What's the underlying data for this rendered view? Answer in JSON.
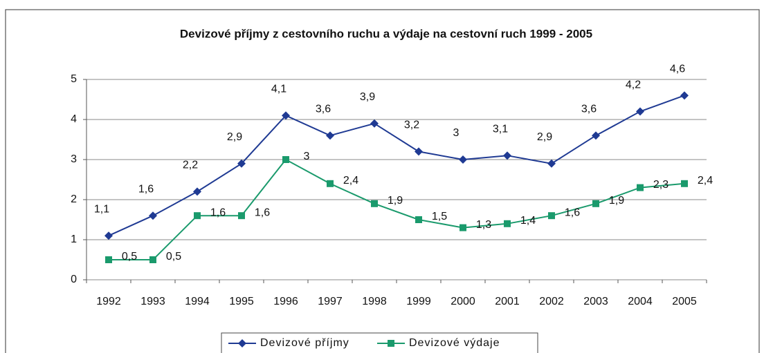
{
  "chart_data": {
    "type": "line",
    "title": "Devizové příjmy z cestovního ruchu a výdaje na cestovní ruch 1999 - 2005",
    "categories": [
      "1992",
      "1993",
      "1994",
      "1995",
      "1996",
      "1997",
      "1998",
      "1999",
      "2000",
      "2001",
      "2002",
      "2003",
      "2004",
      "2005"
    ],
    "series": [
      {
        "name": "Devizové příjmy",
        "color": "#1f3a93",
        "values": [
          1.1,
          1.6,
          2.2,
          2.9,
          4.1,
          3.6,
          3.9,
          3.2,
          3,
          3.1,
          2.9,
          3.6,
          4.2,
          4.6
        ],
        "value_labels": [
          "1,1",
          "1,6",
          "2,2",
          "2,9",
          "4,1",
          "3,6",
          "3,9",
          "3,2",
          "3",
          "3,1",
          "2,9",
          "3,6",
          "4,2",
          "4,6"
        ]
      },
      {
        "name": "Devizové výdaje",
        "color": "#1a9a6c",
        "values": [
          0.5,
          0.5,
          1.6,
          1.6,
          3,
          2.4,
          1.9,
          1.5,
          1.3,
          1.4,
          1.6,
          1.9,
          2.3,
          2.4
        ],
        "value_labels": [
          "0,5",
          "0,5",
          "1,6",
          "1,6",
          "3",
          "2,4",
          "1,9",
          "1,5",
          "1,3",
          "1,4",
          "1,6",
          "1,9",
          "2,3",
          "2,4"
        ]
      }
    ],
    "ylim": [
      0,
      5
    ],
    "yticks": [
      0,
      1,
      2,
      3,
      4,
      5
    ],
    "grid": true,
    "legend": "bottom"
  }
}
